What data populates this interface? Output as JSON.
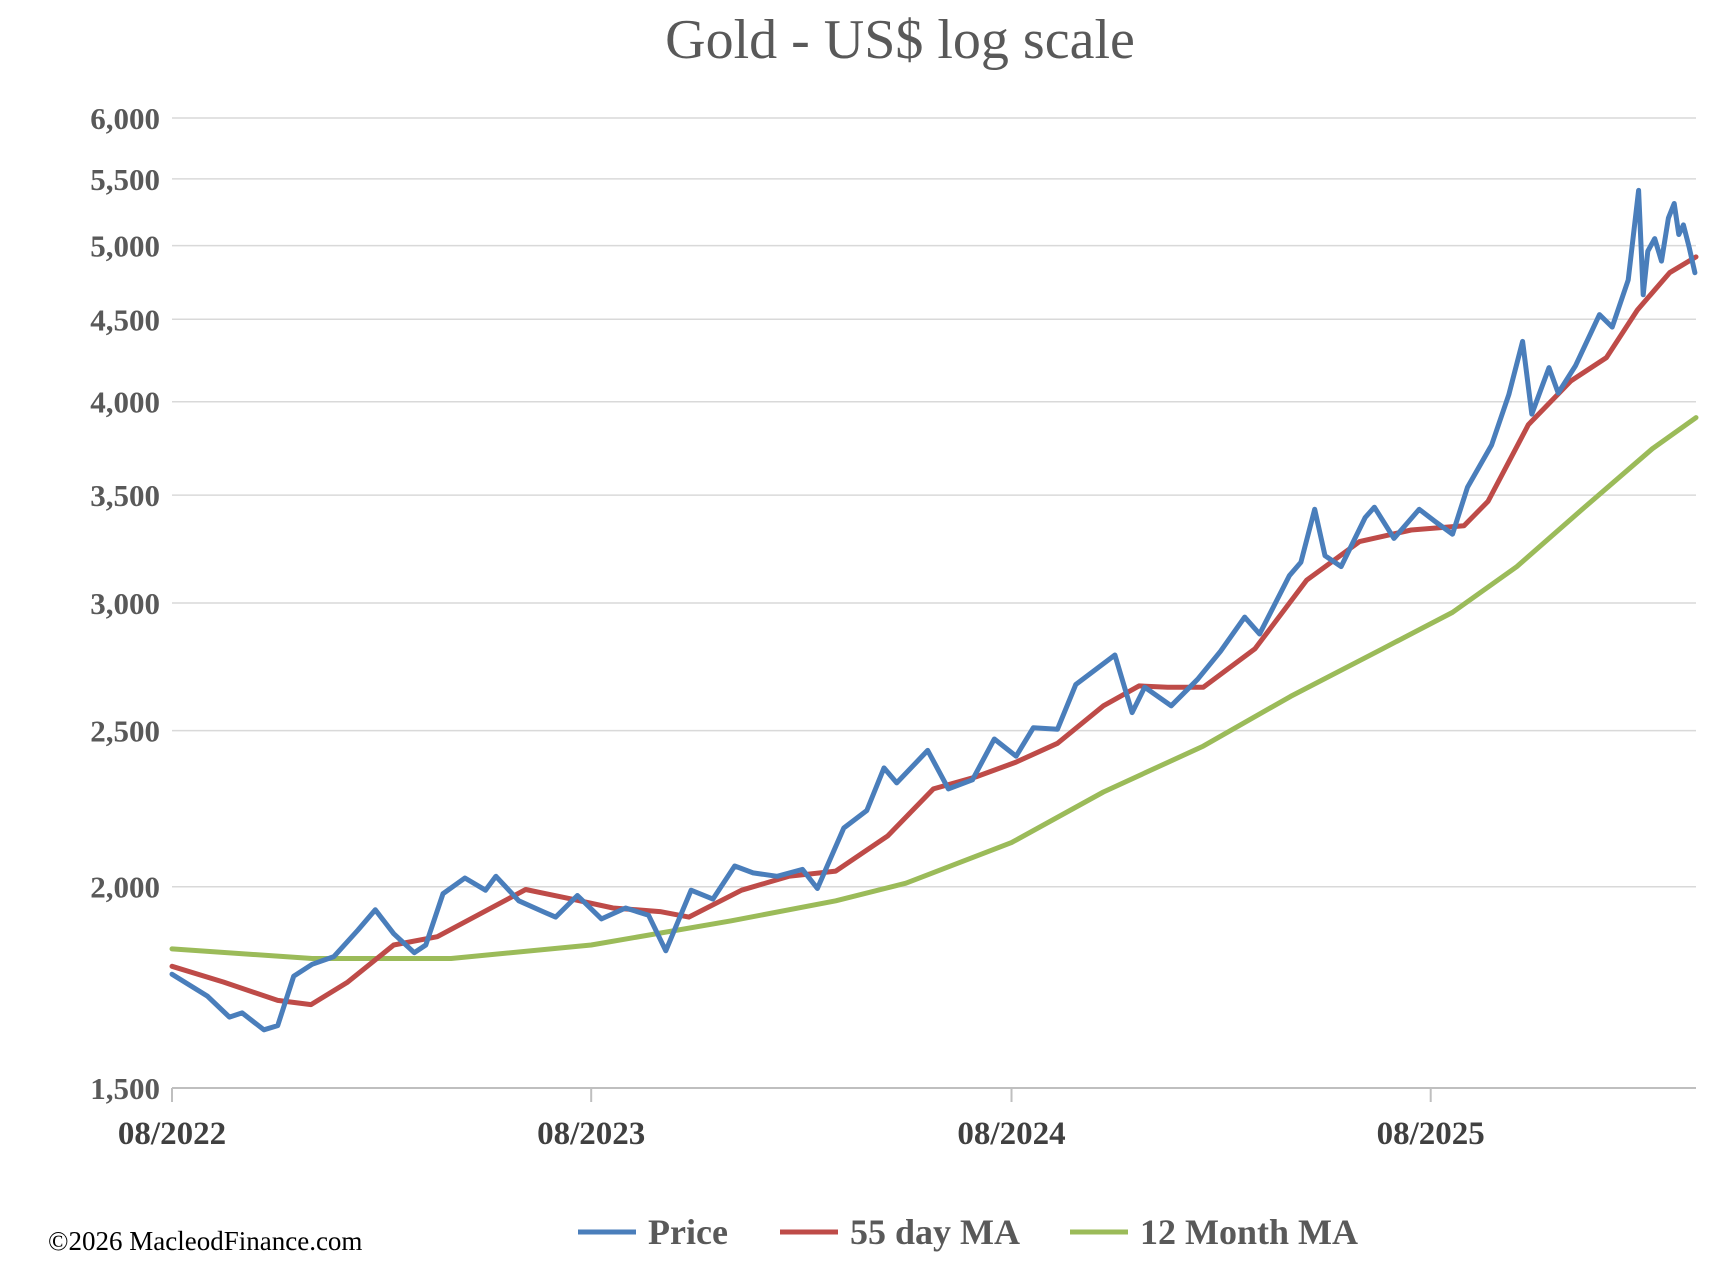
{
  "chart_data": {
    "type": "line",
    "title": "Gold - US$ log scale",
    "x_axis": {
      "start": "2022-08",
      "end": "2026-02",
      "tick_labels": [
        "08/2022",
        "08/2023",
        "08/2024",
        "08/2025"
      ],
      "tick_dates": [
        "2022-08",
        "2023-08",
        "2024-08",
        "2025-08"
      ]
    },
    "y_axis": {
      "scale": "log",
      "ylim": [
        1500,
        6000
      ],
      "ticks": [
        1500,
        2000,
        2500,
        3000,
        3500,
        4000,
        4500,
        5000,
        5500,
        6000
      ],
      "tick_labels": [
        "1,500",
        "2,000",
        "2,500",
        "3,000",
        "3,500",
        "4,000",
        "4,500",
        "5,000",
        "5,500",
        "6,000"
      ]
    },
    "grid": true,
    "legend_position": "bottom",
    "series": [
      {
        "name": "Price",
        "color": "#4a7ebb",
        "points": [
          [
            "2022-08-01",
            1765
          ],
          [
            "2022-09-01",
            1710
          ],
          [
            "2022-09-20",
            1660
          ],
          [
            "2022-10-01",
            1670
          ],
          [
            "2022-10-20",
            1630
          ],
          [
            "2022-11-01",
            1640
          ],
          [
            "2022-11-15",
            1760
          ],
          [
            "2022-12-01",
            1790
          ],
          [
            "2022-12-20",
            1810
          ],
          [
            "2023-01-10",
            1880
          ],
          [
            "2023-01-25",
            1935
          ],
          [
            "2023-02-10",
            1870
          ],
          [
            "2023-02-28",
            1820
          ],
          [
            "2023-03-10",
            1840
          ],
          [
            "2023-03-25",
            1980
          ],
          [
            "2023-04-13",
            2025
          ],
          [
            "2023-05-01",
            1990
          ],
          [
            "2023-05-10",
            2030
          ],
          [
            "2023-05-30",
            1960
          ],
          [
            "2023-06-20",
            1930
          ],
          [
            "2023-07-01",
            1915
          ],
          [
            "2023-07-20",
            1975
          ],
          [
            "2023-08-10",
            1910
          ],
          [
            "2023-08-31",
            1940
          ],
          [
            "2023-09-20",
            1920
          ],
          [
            "2023-10-05",
            1825
          ],
          [
            "2023-10-27",
            1990
          ],
          [
            "2023-11-15",
            1965
          ],
          [
            "2023-12-04",
            2060
          ],
          [
            "2023-12-20",
            2040
          ],
          [
            "2024-01-10",
            2030
          ],
          [
            "2024-02-01",
            2050
          ],
          [
            "2024-02-14",
            1995
          ],
          [
            "2024-03-08",
            2175
          ],
          [
            "2024-03-28",
            2230
          ],
          [
            "2024-04-12",
            2370
          ],
          [
            "2024-04-23",
            2320
          ],
          [
            "2024-05-20",
            2430
          ],
          [
            "2024-06-07",
            2300
          ],
          [
            "2024-06-28",
            2330
          ],
          [
            "2024-07-17",
            2470
          ],
          [
            "2024-08-05",
            2410
          ],
          [
            "2024-08-20",
            2510
          ],
          [
            "2024-09-10",
            2505
          ],
          [
            "2024-09-26",
            2670
          ],
          [
            "2024-10-30",
            2785
          ],
          [
            "2024-11-14",
            2565
          ],
          [
            "2024-11-25",
            2660
          ],
          [
            "2024-12-18",
            2590
          ],
          [
            "2025-01-10",
            2690
          ],
          [
            "2025-01-30",
            2800
          ],
          [
            "2025-02-20",
            2940
          ],
          [
            "2025-03-05",
            2870
          ],
          [
            "2025-03-31",
            3120
          ],
          [
            "2025-04-10",
            3180
          ],
          [
            "2025-04-22",
            3430
          ],
          [
            "2025-05-01",
            3210
          ],
          [
            "2025-05-15",
            3160
          ],
          [
            "2025-06-05",
            3390
          ],
          [
            "2025-06-13",
            3440
          ],
          [
            "2025-06-30",
            3290
          ],
          [
            "2025-07-22",
            3430
          ],
          [
            "2025-08-05",
            3370
          ],
          [
            "2025-08-20",
            3310
          ],
          [
            "2025-09-02",
            3540
          ],
          [
            "2025-09-23",
            3760
          ],
          [
            "2025-10-08",
            4040
          ],
          [
            "2025-10-20",
            4360
          ],
          [
            "2025-10-28",
            3930
          ],
          [
            "2025-11-12",
            4200
          ],
          [
            "2025-11-20",
            4050
          ],
          [
            "2025-12-05",
            4210
          ],
          [
            "2025-12-26",
            4530
          ],
          [
            "2026-01-06",
            4450
          ],
          [
            "2026-01-20",
            4760
          ],
          [
            "2026-01-29",
            5410
          ],
          [
            "2026-02-02",
            4660
          ],
          [
            "2026-02-06",
            4960
          ],
          [
            "2026-02-12",
            5050
          ],
          [
            "2026-02-18",
            4890
          ],
          [
            "2026-02-24",
            5200
          ],
          [
            "2026-03-01",
            5310
          ],
          [
            "2026-03-05",
            5080
          ],
          [
            "2026-03-09",
            5150
          ],
          [
            "2026-03-14",
            4990
          ],
          [
            "2026-03-19",
            4810
          ]
        ]
      },
      {
        "name": "55 day MA",
        "color": "#be4b48",
        "points": [
          [
            "2022-08-01",
            1785
          ],
          [
            "2022-09-15",
            1745
          ],
          [
            "2022-11-01",
            1700
          ],
          [
            "2022-11-30",
            1690
          ],
          [
            "2023-01-01",
            1745
          ],
          [
            "2023-02-10",
            1840
          ],
          [
            "2023-03-20",
            1862
          ],
          [
            "2023-04-30",
            1930
          ],
          [
            "2023-06-05",
            1992
          ],
          [
            "2023-07-15",
            1965
          ],
          [
            "2023-08-20",
            1940
          ],
          [
            "2023-09-30",
            1930
          ],
          [
            "2023-10-25",
            1915
          ],
          [
            "2023-12-10",
            1990
          ],
          [
            "2024-01-20",
            2030
          ],
          [
            "2024-03-01",
            2045
          ],
          [
            "2024-04-15",
            2150
          ],
          [
            "2024-05-25",
            2300
          ],
          [
            "2024-07-01",
            2340
          ],
          [
            "2024-08-05",
            2390
          ],
          [
            "2024-09-10",
            2455
          ],
          [
            "2024-10-20",
            2590
          ],
          [
            "2024-11-20",
            2665
          ],
          [
            "2024-12-15",
            2660
          ],
          [
            "2025-01-15",
            2660
          ],
          [
            "2025-03-01",
            2810
          ],
          [
            "2025-04-15",
            3100
          ],
          [
            "2025-05-31",
            3275
          ],
          [
            "2025-07-15",
            3330
          ],
          [
            "2025-08-30",
            3350
          ],
          [
            "2025-09-20",
            3470
          ],
          [
            "2025-10-25",
            3870
          ],
          [
            "2025-12-01",
            4120
          ],
          [
            "2026-01-01",
            4260
          ],
          [
            "2026-01-28",
            4560
          ],
          [
            "2026-02-25",
            4810
          ],
          [
            "2026-03-20",
            4920
          ]
        ]
      },
      {
        "name": "12 Month MA",
        "color": "#9bbb59",
        "points": [
          [
            "2022-08-01",
            1830
          ],
          [
            "2022-12-01",
            1805
          ],
          [
            "2023-04-01",
            1805
          ],
          [
            "2023-08-01",
            1840
          ],
          [
            "2023-12-01",
            1905
          ],
          [
            "2024-03-01",
            1960
          ],
          [
            "2024-05-01",
            2010
          ],
          [
            "2024-08-01",
            2130
          ],
          [
            "2024-10-20",
            2290
          ],
          [
            "2025-01-15",
            2445
          ],
          [
            "2025-04-01",
            2625
          ],
          [
            "2025-06-20",
            2810
          ],
          [
            "2025-08-20",
            2960
          ],
          [
            "2025-10-15",
            3160
          ],
          [
            "2025-12-15",
            3450
          ],
          [
            "2026-02-10",
            3740
          ],
          [
            "2026-03-20",
            3910
          ]
        ]
      }
    ]
  },
  "legend": {
    "items": [
      {
        "label": "Price",
        "color": "#4a7ebb"
      },
      {
        "label": "55 day MA",
        "color": "#be4b48"
      },
      {
        "label": "12 Month MA",
        "color": "#9bbb59"
      }
    ]
  },
  "footer": {
    "copyright": "©2026 MacleodFinance.com"
  }
}
